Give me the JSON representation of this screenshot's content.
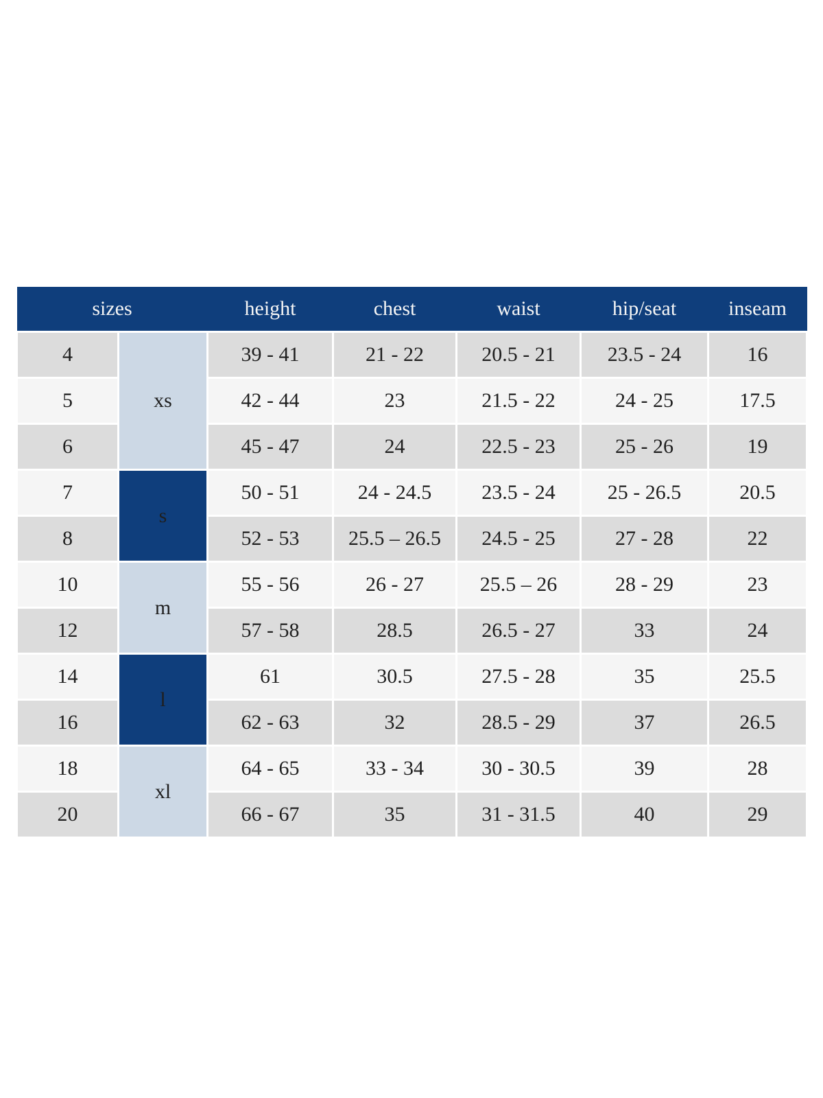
{
  "colors": {
    "header_bg": "#0f3e7c",
    "header_text": "#f5f5f5",
    "group_dark_bg": "#0f3e7c",
    "group_dark_text": "#f5f5f5",
    "group_light_bg": "#ccd8e5",
    "row_dark_bg": "#dcdcdc",
    "row_light_bg": "#f5f5f5",
    "body_text": "#1f1f1f"
  },
  "table": {
    "header": {
      "sizes_label": "sizes",
      "columns": [
        "height",
        "chest",
        "waist",
        "hip/seat",
        "inseam"
      ]
    },
    "groups": [
      {
        "label": "xs",
        "span": 3,
        "tone": "light"
      },
      {
        "label": "s",
        "span": 2,
        "tone": "dark"
      },
      {
        "label": "m",
        "span": 2,
        "tone": "light"
      },
      {
        "label": "l",
        "span": 2,
        "tone": "dark"
      },
      {
        "label": "xl",
        "span": 2,
        "tone": "light"
      }
    ],
    "rows": [
      {
        "size": "4",
        "values": [
          "39 - 41",
          "21 - 22",
          "20.5 - 21",
          "23.5 - 24",
          "16"
        ]
      },
      {
        "size": "5",
        "values": [
          "42 - 44",
          "23",
          "21.5 - 22",
          "24 - 25",
          "17.5"
        ]
      },
      {
        "size": "6",
        "values": [
          "45 - 47",
          "24",
          "22.5 - 23",
          "25 - 26",
          "19"
        ]
      },
      {
        "size": "7",
        "values": [
          "50 - 51",
          "24 - 24.5",
          "23.5 - 24",
          "25 - 26.5",
          "20.5"
        ]
      },
      {
        "size": "8",
        "values": [
          "52 - 53",
          "25.5 – 26.5",
          "24.5 - 25",
          "27 - 28",
          "22"
        ]
      },
      {
        "size": "10",
        "values": [
          "55 - 56",
          "26 - 27",
          "25.5 – 26",
          "28 - 29",
          "23"
        ]
      },
      {
        "size": "12",
        "values": [
          "57 - 58",
          "28.5",
          "26.5 - 27",
          "33",
          "24"
        ]
      },
      {
        "size": "14",
        "values": [
          "61",
          "30.5",
          "27.5 - 28",
          "35",
          "25.5"
        ]
      },
      {
        "size": "16",
        "values": [
          "62 - 63",
          "32",
          "28.5 - 29",
          "37",
          "26.5"
        ]
      },
      {
        "size": "18",
        "values": [
          "64 - 65",
          "33 - 34",
          "30 - 30.5",
          "39",
          "28"
        ]
      },
      {
        "size": "20",
        "values": [
          "66 - 67",
          "35",
          "31 - 31.5",
          "40",
          "29"
        ]
      }
    ]
  }
}
